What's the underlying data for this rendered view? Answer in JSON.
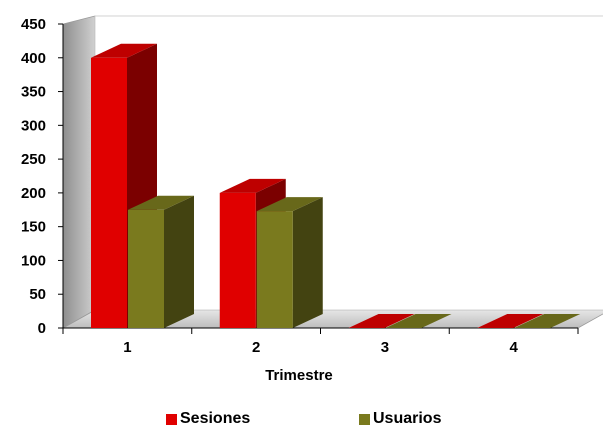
{
  "chart_data": {
    "type": "bar",
    "style": "3d-clustered-column",
    "categories": [
      "1",
      "2",
      "3",
      "4"
    ],
    "series": [
      {
        "name": "Sesiones",
        "values": [
          400,
          200,
          0,
          0
        ],
        "color": "#e00000"
      },
      {
        "name": "Usuarios",
        "values": [
          175,
          173,
          0,
          0
        ],
        "color": "#7a7a1e"
      }
    ],
    "title": "",
    "xlabel": "Trimestre",
    "ylabel": "",
    "ylim": [
      0,
      450
    ],
    "yticks": [
      "0",
      "50",
      "100",
      "150",
      "200",
      "250",
      "300",
      "350",
      "400",
      "450"
    ],
    "grid": false,
    "legend_position": "bottom"
  }
}
